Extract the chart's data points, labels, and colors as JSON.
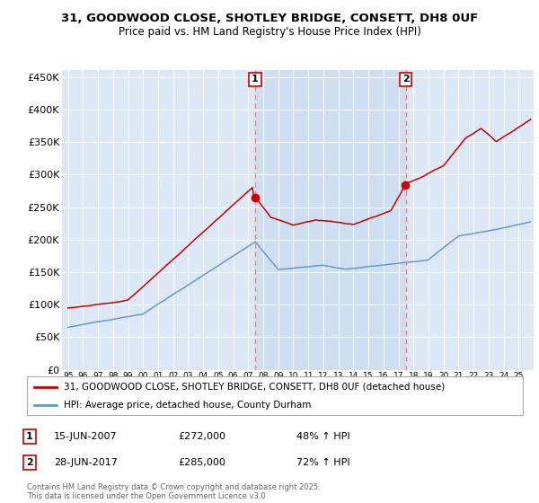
{
  "title_line1": "31, GOODWOOD CLOSE, SHOTLEY BRIDGE, CONSETT, DH8 0UF",
  "title_line2": "Price paid vs. HM Land Registry's House Price Index (HPI)",
  "plot_bg_color": "#dce8f5",
  "shade_color": "#c8dcf0",
  "ylim": [
    0,
    460000
  ],
  "yticks": [
    0,
    50000,
    100000,
    150000,
    200000,
    250000,
    300000,
    350000,
    400000,
    450000
  ],
  "ytick_labels": [
    "£0",
    "£50K",
    "£100K",
    "£150K",
    "£200K",
    "£250K",
    "£300K",
    "£350K",
    "£400K",
    "£450K"
  ],
  "sale1_x": 2007.46,
  "sale1_price": 272000,
  "sale2_x": 2017.49,
  "sale2_price": 285000,
  "legend_line1": "31, GOODWOOD CLOSE, SHOTLEY BRIDGE, CONSETT, DH8 0UF (detached house)",
  "legend_line2": "HPI: Average price, detached house, County Durham",
  "table_row1": [
    "1",
    "15-JUN-2007",
    "£272,000",
    "48% ↑ HPI"
  ],
  "table_row2": [
    "2",
    "28-JUN-2017",
    "£285,000",
    "72% ↑ HPI"
  ],
  "footer": "Contains HM Land Registry data © Crown copyright and database right 2025.\nThis data is licensed under the Open Government Licence v3.0.",
  "red_color": "#cc0000",
  "blue_color": "#6699cc",
  "vline_color": "#ee8888",
  "xlim_left": 1994.6,
  "xlim_right": 2026.0
}
